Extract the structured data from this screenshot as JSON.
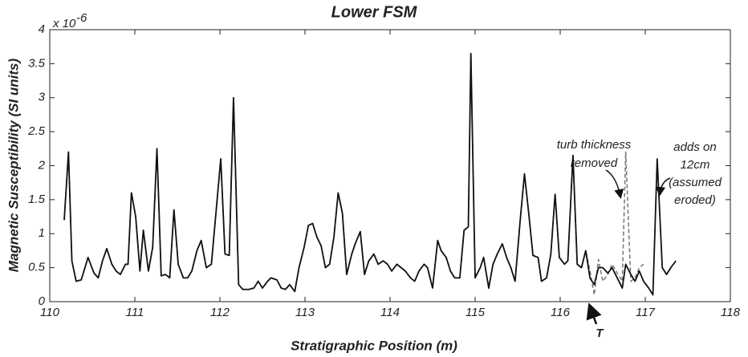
{
  "chart_data": {
    "type": "line",
    "title": "Lower FSM",
    "x_label": "Stratigraphic Position (m)",
    "y_label": "Magnetic Susceptibility (SI units)",
    "y_multiplier": {
      "base": "x 10",
      "exponent": "-6"
    },
    "annotations": [
      {
        "lines": [
          "turb thickness",
          "removed"
        ]
      },
      {
        "lines": [
          "adds on",
          "12cm",
          "(assumed",
          "eroded)"
        ]
      },
      {
        "lines": [
          "T"
        ]
      }
    ],
    "xlim": [
      110,
      118
    ],
    "xticks": [
      110,
      111,
      112,
      113,
      114,
      115,
      116,
      117,
      118
    ],
    "ylim": [
      0,
      4
    ],
    "yticks": [
      0,
      0.5,
      1,
      1.5,
      2,
      2.5,
      3,
      3.5,
      4
    ],
    "x": [
      110.17,
      110.22,
      110.26,
      110.31,
      110.37,
      110.45,
      110.52,
      110.57,
      110.62,
      110.67,
      110.73,
      110.78,
      110.83,
      110.89,
      110.92,
      110.96,
      111.01,
      111.06,
      111.1,
      111.16,
      111.21,
      111.26,
      111.31,
      111.36,
      111.41,
      111.46,
      111.51,
      111.57,
      111.62,
      111.67,
      111.73,
      111.78,
      111.84,
      111.9,
      112.01,
      112.06,
      112.11,
      112.16,
      112.22,
      112.27,
      112.34,
      112.4,
      112.45,
      112.5,
      112.56,
      112.6,
      112.67,
      112.72,
      112.77,
      112.82,
      112.88,
      112.93,
      112.99,
      113.04,
      113.09,
      113.14,
      113.19,
      113.24,
      113.29,
      113.34,
      113.39,
      113.44,
      113.49,
      113.55,
      113.59,
      113.65,
      113.7,
      113.75,
      113.81,
      113.86,
      113.92,
      113.97,
      114.02,
      114.08,
      114.13,
      114.18,
      114.24,
      114.29,
      114.34,
      114.4,
      114.44,
      114.5,
      114.56,
      114.6,
      114.66,
      114.71,
      114.76,
      114.82,
      114.87,
      114.92,
      114.95,
      115.0,
      115.06,
      115.1,
      115.16,
      115.21,
      115.26,
      115.32,
      115.37,
      115.42,
      115.47,
      115.53,
      115.58,
      115.63,
      115.68,
      115.74,
      115.78,
      115.84,
      115.89,
      115.94,
      115.99,
      116.05,
      116.09,
      116.15,
      116.2,
      116.25,
      116.3,
      116.35,
      116.4,
      116.45,
      116.5,
      116.56,
      116.61,
      116.67,
      116.73,
      116.77,
      116.83,
      116.88,
      116.93,
      116.98,
      117.04,
      117.09,
      117.14,
      117.2,
      117.25,
      117.3,
      117.36
    ],
    "series": [
      {
        "color": "#7a7a7a",
        "dashed": true,
        "values": [
          1.2,
          2.2,
          0.6,
          0.3,
          0.32,
          0.65,
          0.42,
          0.35,
          0.6,
          0.78,
          0.55,
          0.45,
          0.4,
          0.55,
          0.55,
          1.6,
          1.25,
          0.45,
          1.05,
          0.45,
          0.8,
          2.25,
          0.38,
          0.4,
          0.35,
          1.35,
          0.55,
          0.35,
          0.35,
          0.45,
          0.75,
          0.9,
          0.5,
          0.55,
          2.1,
          0.7,
          0.68,
          3.0,
          0.25,
          0.18,
          0.18,
          0.2,
          0.3,
          0.2,
          0.3,
          0.35,
          0.32,
          0.2,
          0.18,
          0.25,
          0.15,
          0.5,
          0.8,
          1.12,
          1.15,
          0.95,
          0.82,
          0.5,
          0.55,
          0.95,
          1.6,
          1.3,
          0.4,
          0.7,
          0.85,
          1.03,
          0.4,
          0.6,
          0.7,
          0.55,
          0.6,
          0.55,
          0.45,
          0.55,
          0.5,
          0.45,
          0.35,
          0.3,
          0.45,
          0.55,
          0.5,
          0.2,
          0.9,
          0.75,
          0.65,
          0.45,
          0.35,
          0.35,
          1.05,
          1.1,
          3.65,
          0.35,
          0.5,
          0.65,
          0.2,
          0.55,
          0.7,
          0.85,
          0.65,
          0.5,
          0.3,
          1.2,
          1.88,
          1.3,
          0.68,
          0.65,
          0.3,
          0.35,
          0.7,
          1.58,
          0.65,
          0.55,
          0.6,
          2.15,
          0.55,
          0.5,
          0.75,
          0.45,
          0.1,
          0.62,
          0.3,
          0.4,
          0.55,
          0.42,
          0.3,
          2.2,
          0.3,
          0.35,
          0.5,
          0.55,
          null,
          null,
          null,
          null,
          null,
          null,
          null
        ]
      },
      {
        "color": "#111111",
        "dashed": false,
        "values": [
          1.2,
          2.2,
          0.6,
          0.3,
          0.32,
          0.65,
          0.42,
          0.35,
          0.6,
          0.78,
          0.55,
          0.45,
          0.4,
          0.55,
          0.55,
          1.6,
          1.25,
          0.45,
          1.05,
          0.45,
          0.8,
          2.25,
          0.38,
          0.4,
          0.35,
          1.35,
          0.55,
          0.35,
          0.35,
          0.45,
          0.75,
          0.9,
          0.5,
          0.55,
          2.1,
          0.7,
          0.68,
          3.0,
          0.25,
          0.18,
          0.18,
          0.2,
          0.3,
          0.2,
          0.3,
          0.35,
          0.32,
          0.2,
          0.18,
          0.25,
          0.15,
          0.5,
          0.8,
          1.12,
          1.15,
          0.95,
          0.82,
          0.5,
          0.55,
          0.95,
          1.6,
          1.3,
          0.4,
          0.7,
          0.85,
          1.03,
          0.4,
          0.6,
          0.7,
          0.55,
          0.6,
          0.55,
          0.45,
          0.55,
          0.5,
          0.45,
          0.35,
          0.3,
          0.45,
          0.55,
          0.5,
          0.2,
          0.9,
          0.75,
          0.65,
          0.45,
          0.35,
          0.35,
          1.05,
          1.1,
          3.65,
          0.35,
          0.5,
          0.65,
          0.2,
          0.55,
          0.7,
          0.85,
          0.65,
          0.5,
          0.3,
          1.2,
          1.88,
          1.3,
          0.68,
          0.65,
          0.3,
          0.35,
          0.7,
          1.58,
          0.65,
          0.55,
          0.6,
          2.15,
          0.55,
          0.5,
          0.75,
          0.35,
          0.25,
          0.5,
          0.5,
          0.42,
          0.5,
          0.35,
          0.2,
          0.55,
          0.4,
          0.3,
          0.45,
          0.3,
          0.2,
          0.1,
          2.1,
          0.5,
          0.4,
          0.5,
          0.6
        ]
      }
    ]
  }
}
